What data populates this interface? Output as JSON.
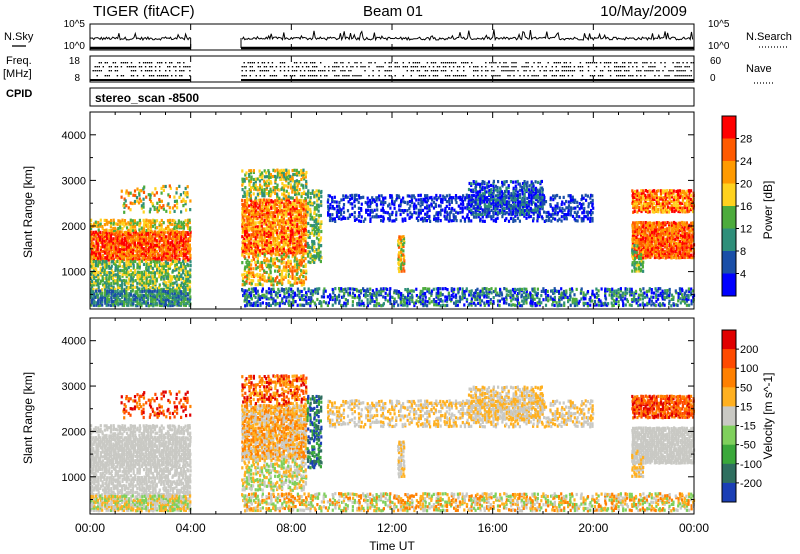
{
  "header": {
    "left_title": "TIGER (fitACF)",
    "center_title": "Beam 01",
    "date": "10/May/2009"
  },
  "sky_panel": {
    "left_label": "N.Sky",
    "left_ticks": [
      "10^5",
      "10^0"
    ],
    "right_label": "N.Search",
    "right_ticks": [
      "10^5",
      "10^0"
    ]
  },
  "freq_panel": {
    "left_label_line1": "Freq.",
    "left_label_line2": "[MHz]",
    "left_ticks": [
      "18",
      "8"
    ],
    "right_label": "Nave",
    "right_ticks": [
      "60",
      "0"
    ]
  },
  "cpid": {
    "label": "CPID",
    "value": "stereo_scan -8500"
  },
  "chart_data": [
    {
      "type": "heatmap",
      "panel": "power",
      "ylabel": "Slant Range [km]",
      "yticks": [
        "4000",
        "3000",
        "2000",
        "1000"
      ],
      "ylim": [
        180,
        4500
      ],
      "xlim_hours": [
        0,
        24
      ],
      "data_gap_hours": [
        4.0,
        6.0
      ],
      "colorbar": {
        "label": "Power [dB]",
        "ticks": [
          "28",
          "24",
          "20",
          "16",
          "12",
          "8",
          "4"
        ],
        "colors": [
          "#0000ff",
          "#1a4fa8",
          "#2f8f7a",
          "#4cab3c",
          "#ffd21e",
          "#ff9a00",
          "#ff5a00",
          "#ff0000"
        ]
      }
    },
    {
      "type": "heatmap",
      "panel": "velocity",
      "ylabel": "Slant Range [km]",
      "yticks": [
        "4000",
        "3000",
        "2000",
        "1000"
      ],
      "ylim": [
        180,
        4500
      ],
      "xlim_hours": [
        0,
        24
      ],
      "data_gap_hours": [
        4.0,
        6.0
      ],
      "colorbar": {
        "label": "Velocity [m s^-1]",
        "ticks": [
          "200",
          "100",
          "50",
          "15",
          "-15",
          "-50",
          "-100",
          "-200"
        ],
        "colors": [
          "#1b3fb5",
          "#2f6f5f",
          "#3aa83a",
          "#7fd05c",
          "#c9c9c4",
          "#ffb020",
          "#ff8000",
          "#ff4a00",
          "#e00000"
        ]
      }
    }
  ],
  "x_axis": {
    "ticks": [
      "00:00",
      "04:00",
      "08:00",
      "12:00",
      "16:00",
      "20:00",
      "00:00"
    ],
    "label": "Time UT"
  }
}
